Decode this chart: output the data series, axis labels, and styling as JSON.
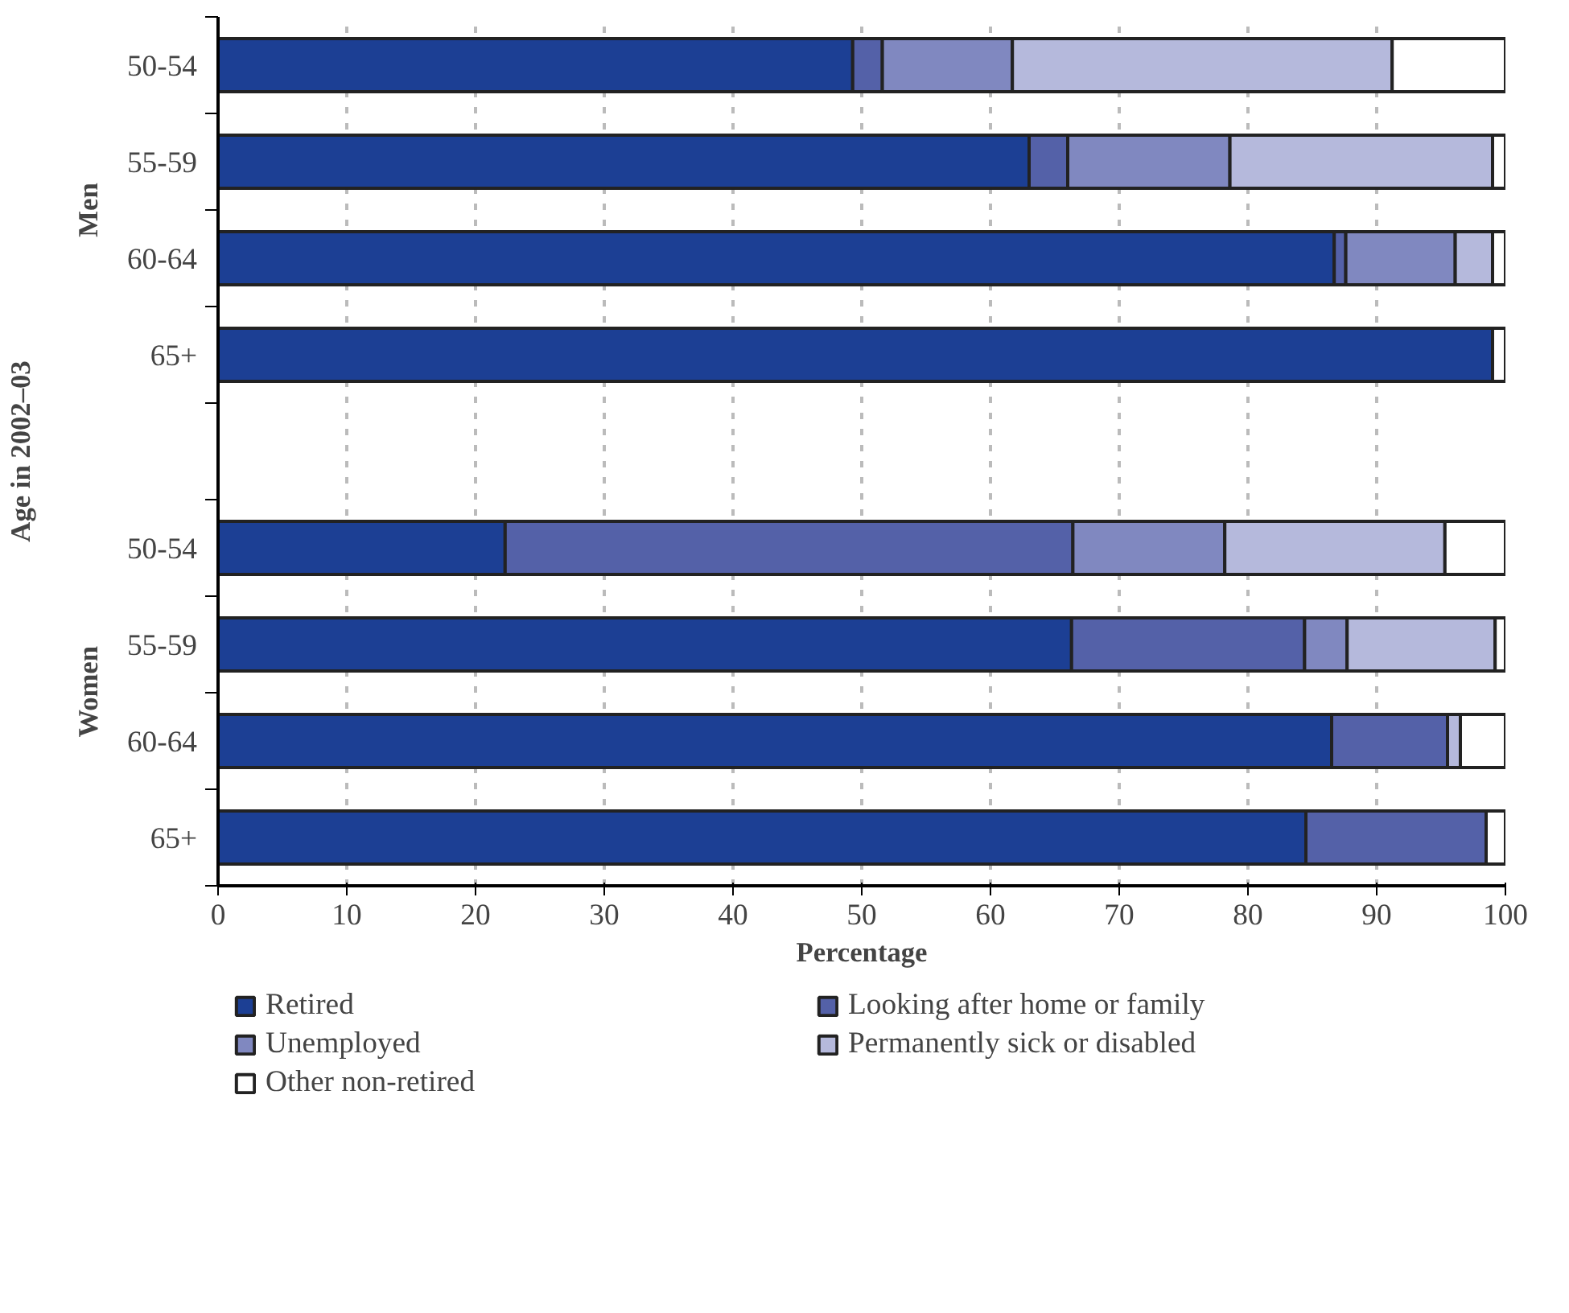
{
  "chart_data": {
    "type": "bar",
    "orientation": "horizontal",
    "stacked": true,
    "xlabel": "Percentage",
    "ylabel": "Age in 2002–03",
    "categories": [
      "50-54",
      "55-59",
      "60-64",
      "65+",
      null,
      "50-54",
      "55-59",
      "60-64",
      "65+"
    ],
    "series": [
      {
        "name": "Retired",
        "color": "#1c3f94",
        "values": [
          49.3,
          63.0,
          86.7,
          99.0,
          null,
          22.3,
          66.3,
          86.5,
          84.5
        ]
      },
      {
        "name": "Looking after home or family",
        "color": "#5461a8",
        "values": [
          2.3,
          3.0,
          0.9,
          null,
          null,
          44.1,
          18.1,
          9.0,
          14.0
        ]
      },
      {
        "name": "Unemployed",
        "color": "#8088c0",
        "values": [
          10.1,
          12.6,
          8.5,
          null,
          null,
          11.8,
          3.3,
          null,
          null
        ]
      },
      {
        "name": "Permanently sick or disabled",
        "color": "#b5b9dc",
        "values": [
          29.5,
          20.4,
          2.9,
          null,
          null,
          17.1,
          11.5,
          1.0,
          null
        ]
      },
      {
        "name": "Other non-retired",
        "color": "#ffffff",
        "values": [
          8.8,
          1.0,
          1.0,
          1.0,
          null,
          4.7,
          0.8,
          3.5,
          1.5
        ]
      }
    ],
    "annotations": [
      "Men",
      "Women"
    ],
    "xlim": [
      0,
      100
    ],
    "xticks": [
      0,
      10,
      20,
      30,
      40,
      50,
      60,
      70,
      80,
      90,
      100
    ],
    "grid": "x",
    "legend": "bottom"
  }
}
